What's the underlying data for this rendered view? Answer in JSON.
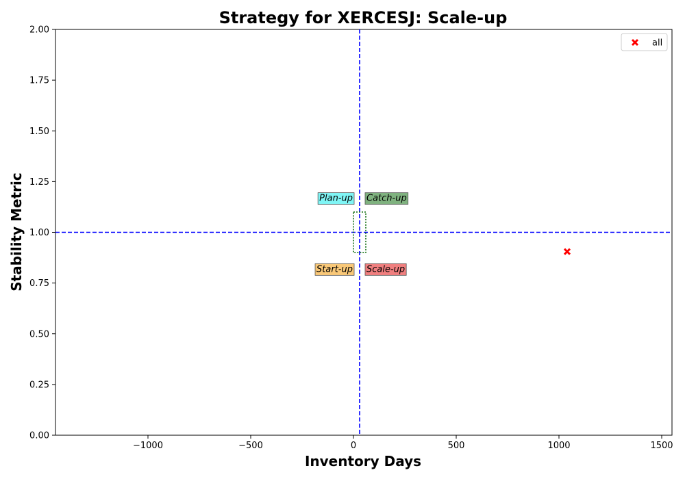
{
  "chart_data": {
    "type": "scatter",
    "title": "Strategy for XERCESJ: Scale-up",
    "xlabel": "Inventory Days",
    "ylabel": "Stability Metric",
    "xlim": [
      -1450,
      1550
    ],
    "ylim": [
      0,
      2
    ],
    "xticks": [
      -1000,
      -500,
      0,
      500,
      1000,
      1500
    ],
    "xtick_labels": [
      "−1000",
      "−500",
      "0",
      "500",
      "1000",
      "1500"
    ],
    "yticks": [
      0,
      0.25,
      0.5,
      0.75,
      1.0,
      1.25,
      1.5,
      1.75,
      2.0
    ],
    "ytick_labels": [
      "0.00",
      "0.25",
      "0.50",
      "0.75",
      "1.00",
      "1.25",
      "1.50",
      "1.75",
      "2.00"
    ],
    "grid": false,
    "legend_position": "top-right",
    "reference_lines": {
      "x": 30,
      "y": 1.0,
      "color": "#0000ff",
      "style": "dashed"
    },
    "box": {
      "x": [
        0,
        60
      ],
      "y": [
        0.9,
        1.1
      ],
      "color": "#006400",
      "style": "dotted"
    },
    "quadrant_labels": [
      {
        "text": "Plan-up",
        "side": "left",
        "y": 1.17,
        "color": "#7ff5f5"
      },
      {
        "text": "Catch-up",
        "side": "right",
        "y": 1.17,
        "color": "#7fb27f"
      },
      {
        "text": "Start-up",
        "side": "left",
        "y": 0.82,
        "color": "#f9c878"
      },
      {
        "text": "Scale-up",
        "side": "right",
        "y": 0.82,
        "color": "#f07f7f"
      }
    ],
    "series": [
      {
        "name": "all",
        "color": "#ff0000",
        "marker": "x",
        "points": [
          {
            "x": 1040,
            "y": 0.905
          }
        ]
      }
    ]
  }
}
